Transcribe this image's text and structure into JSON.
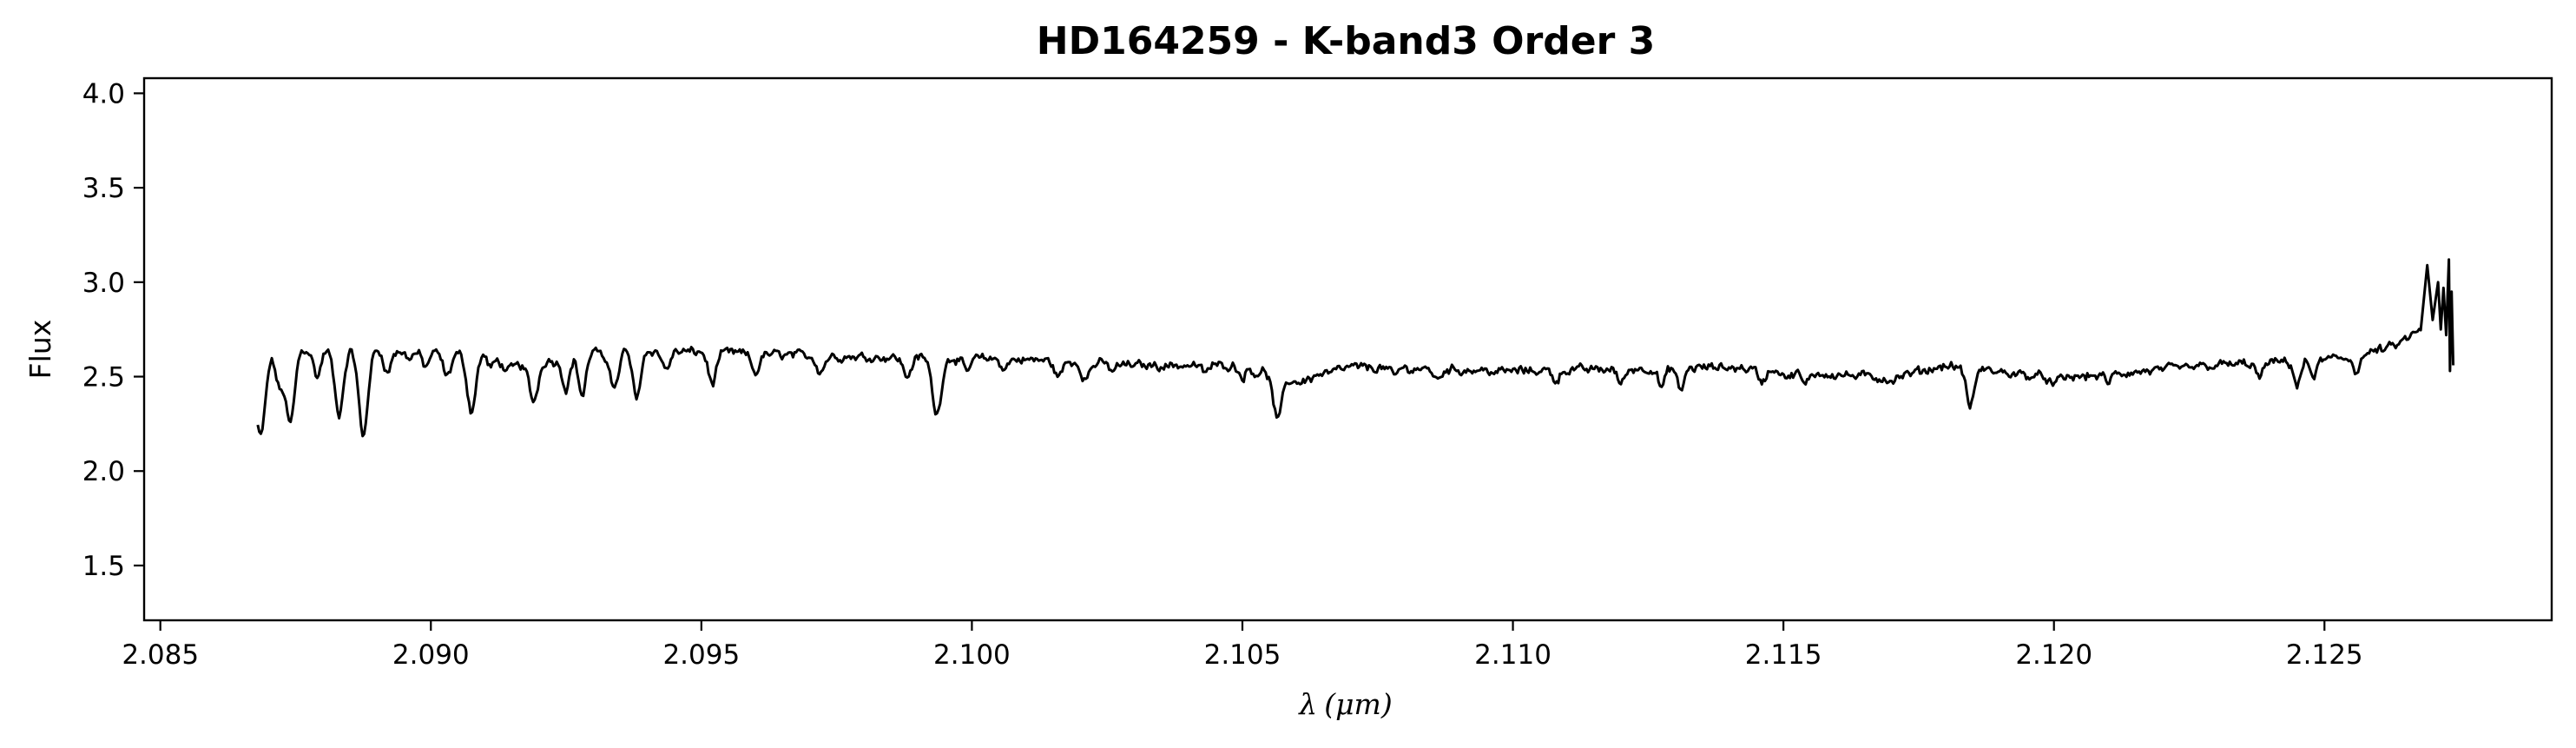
{
  "chart_data": {
    "type": "line",
    "title": "HD164259 - K-band3 Order 3",
    "xlabel": {
      "symbol": "λ",
      "unit": "(μm)"
    },
    "ylabel": "Flux",
    "xlim": [
      2.0847,
      2.1292
    ],
    "ylim": [
      1.21,
      4.08
    ],
    "grid": false,
    "legend": "none",
    "line_color": "#000000",
    "xticks": [
      2.085,
      2.09,
      2.095,
      2.1,
      2.105,
      2.11,
      2.115,
      2.12,
      2.125
    ],
    "xtick_labels": [
      "2.085",
      "2.090",
      "2.095",
      "2.100",
      "2.105",
      "2.110",
      "2.115",
      "2.120",
      "2.125"
    ],
    "yticks": [
      1.5,
      2.0,
      2.5,
      3.0,
      3.5,
      4.0
    ],
    "ytick_labels": [
      "1.5",
      "2.0",
      "2.5",
      "3.0",
      "3.5",
      "4.0"
    ],
    "x_range": [
      2.0868,
      2.1273
    ],
    "series": [
      {
        "continuum": [
          [
            2.0868,
            2.63
          ],
          [
            2.088,
            2.65
          ],
          [
            2.0895,
            2.63
          ],
          [
            2.091,
            2.62
          ],
          [
            2.0915,
            2.55
          ],
          [
            2.093,
            2.64
          ],
          [
            2.095,
            2.63
          ],
          [
            2.097,
            2.61
          ],
          [
            2.099,
            2.6
          ],
          [
            2.101,
            2.59
          ],
          [
            2.103,
            2.56
          ],
          [
            2.105,
            2.56
          ],
          [
            2.1055,
            2.52
          ],
          [
            2.106,
            2.47
          ],
          [
            2.107,
            2.55
          ],
          [
            2.11,
            2.53
          ],
          [
            2.112,
            2.54
          ],
          [
            2.114,
            2.55
          ],
          [
            2.116,
            2.51
          ],
          [
            2.117,
            2.49
          ],
          [
            2.118,
            2.56
          ],
          [
            2.12,
            2.49
          ],
          [
            2.121,
            2.51
          ],
          [
            2.123,
            2.56
          ],
          [
            2.1245,
            2.58
          ],
          [
            2.1255,
            2.6
          ],
          [
            2.1263,
            2.66
          ],
          [
            2.1268,
            2.75
          ],
          [
            2.1273,
            2.86
          ]
        ],
        "absorption_lines": [
          [
            2.08685,
            2.18,
            9e-05
          ],
          [
            2.0872,
            2.45,
            7e-05
          ],
          [
            2.0874,
            2.25,
            8e-05
          ],
          [
            2.0879,
            2.5,
            7e-05
          ],
          [
            2.0883,
            2.3,
            8e-05
          ],
          [
            2.08875,
            2.18,
            8e-05
          ],
          [
            2.0892,
            2.52,
            6e-05
          ],
          [
            2.0896,
            2.6,
            6e-05
          ],
          [
            2.0899,
            2.55,
            6e-05
          ],
          [
            2.0903,
            2.5,
            7e-05
          ],
          [
            2.09075,
            2.32,
            8e-05
          ],
          [
            2.0911,
            2.55,
            6e-05
          ],
          [
            2.0914,
            2.53,
            6e-05
          ],
          [
            2.0919,
            2.37,
            8e-05
          ],
          [
            2.0923,
            2.58,
            6e-05
          ],
          [
            2.0925,
            2.44,
            7e-05
          ],
          [
            2.0928,
            2.4,
            7e-05
          ],
          [
            2.0932,
            2.58,
            6e-05
          ],
          [
            2.0934,
            2.44,
            7e-05
          ],
          [
            2.0938,
            2.38,
            7e-05
          ],
          [
            2.09435,
            2.54,
            7e-05
          ],
          [
            2.0952,
            2.46,
            7e-05
          ],
          [
            2.096,
            2.52,
            7e-05
          ],
          [
            2.0972,
            2.53,
            7e-05
          ],
          [
            2.0988,
            2.5,
            7e-05
          ],
          [
            2.09935,
            2.3,
            8e-05
          ],
          [
            2.0999,
            2.52,
            6e-05
          ],
          [
            2.1006,
            2.54,
            6e-05
          ],
          [
            2.1016,
            2.5,
            7e-05
          ],
          [
            2.1021,
            2.49,
            7e-05
          ],
          [
            2.1026,
            2.53,
            6e-05
          ],
          [
            2.1043,
            2.52,
            6e-05
          ],
          [
            2.105,
            2.5,
            6e-05
          ],
          [
            2.10525,
            2.52,
            6e-05
          ],
          [
            2.10565,
            2.27,
            8e-05
          ],
          [
            2.1064,
            2.51,
            6e-05
          ],
          [
            2.1078,
            2.5,
            6e-05
          ],
          [
            2.1086,
            2.48,
            6e-05
          ],
          [
            2.1097,
            2.52,
            6e-05
          ],
          [
            2.1108,
            2.48,
            6e-05
          ],
          [
            2.112,
            2.46,
            6e-05
          ],
          [
            2.11275,
            2.44,
            6e-05
          ],
          [
            2.1131,
            2.42,
            6e-05
          ],
          [
            2.1146,
            2.47,
            6e-05
          ],
          [
            2.1151,
            2.49,
            6e-05
          ],
          [
            2.1154,
            2.45,
            6e-05
          ],
          [
            2.117,
            2.48,
            6e-05
          ],
          [
            2.11845,
            2.34,
            7e-05
          ],
          [
            2.12,
            2.45,
            6e-05
          ],
          [
            2.121,
            2.47,
            6e-05
          ],
          [
            2.1238,
            2.49,
            6e-05
          ],
          [
            2.1245,
            2.45,
            6e-05
          ],
          [
            2.1248,
            2.5,
            6e-05
          ],
          [
            2.1256,
            2.53,
            6e-05
          ]
        ],
        "noise_amplitude": 0.035,
        "edge_spikes": [
          [
            2.1269,
            3.09
          ],
          [
            2.127,
            2.8
          ],
          [
            2.1271,
            3.0
          ],
          [
            2.12715,
            2.75
          ],
          [
            2.1272,
            2.97
          ],
          [
            2.12725,
            2.72
          ],
          [
            2.1273,
            3.12
          ],
          [
            2.12732,
            2.53
          ],
          [
            2.12735,
            2.95
          ],
          [
            2.12738,
            2.56
          ]
        ]
      }
    ]
  }
}
